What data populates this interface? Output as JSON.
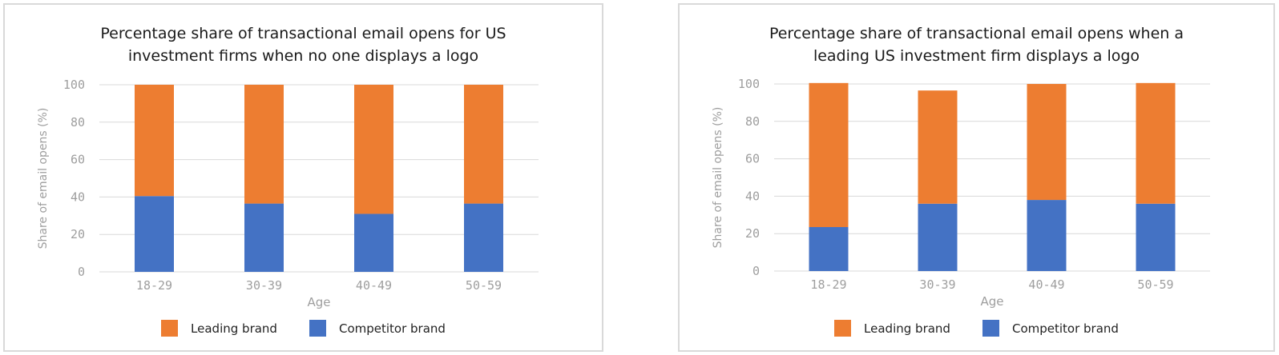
{
  "colors": {
    "leading": "#ed7d31",
    "competitor": "#4472c4",
    "grid": "#d9d9d9",
    "axis_text": "#9e9e9e",
    "title": "#1a1a1a",
    "border": "#d9d9d9"
  },
  "chart_data": [
    {
      "type": "bar",
      "stacked": true,
      "title": "Percentage share of transactional email opens for US\ninvestment firms when no one displays a logo",
      "xlabel": "Age",
      "ylabel": "Share of email opens (%)",
      "ylim": [
        0,
        100
      ],
      "yticks": [
        "0",
        "20",
        "40",
        "60",
        "80",
        "100"
      ],
      "categories": [
        "18-29",
        "30-39",
        "40-49",
        "50-59"
      ],
      "series": [
        {
          "name": "Competitor brand",
          "values": [
            40.5,
            36.5,
            31,
            36.5
          ]
        },
        {
          "name": "Leading brand",
          "values": [
            59.5,
            63.5,
            69,
            63.5
          ]
        }
      ],
      "legend": [
        "Leading brand",
        "Competitor brand"
      ],
      "legend_position": "bottom",
      "grid": true
    },
    {
      "type": "bar",
      "stacked": true,
      "title": "Percentage share of transactional email opens when a\nleading US investment firm displays a logo",
      "xlabel": "Age",
      "ylabel": "Share of email opens (%)",
      "ylim": [
        0,
        100
      ],
      "yticks": [
        "0",
        "20",
        "40",
        "60",
        "80",
        "100"
      ],
      "categories": [
        "18-29",
        "30-39",
        "40-49",
        "50-59"
      ],
      "series": [
        {
          "name": "Competitor brand",
          "values": [
            23.5,
            36,
            38,
            36
          ]
        },
        {
          "name": "Leading brand",
          "values": [
            77,
            60.5,
            62,
            64.5
          ]
        }
      ],
      "legend": [
        "Leading brand",
        "Competitor brand"
      ],
      "legend_position": "bottom",
      "grid": true
    }
  ]
}
